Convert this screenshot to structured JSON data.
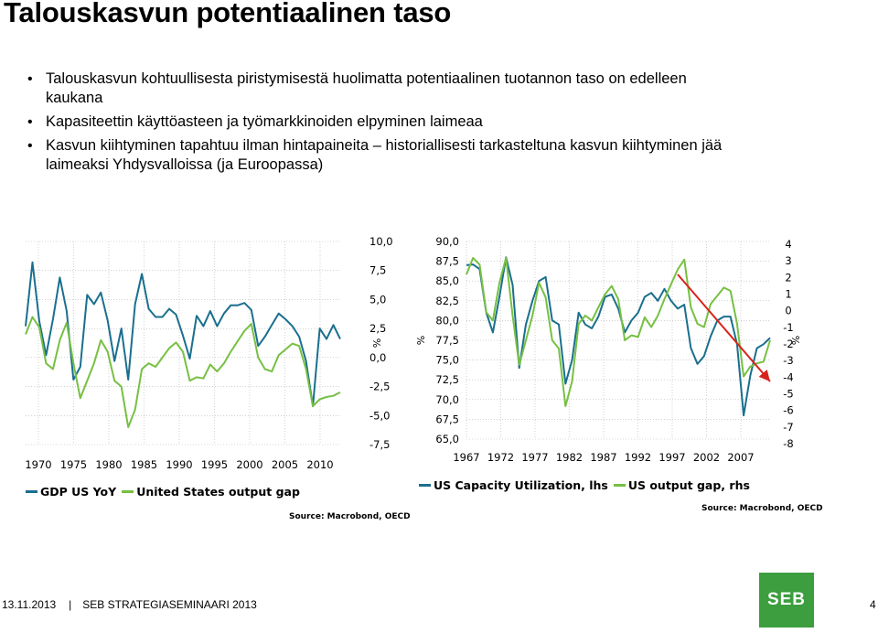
{
  "title": "Talouskasvun potentiaalinen taso",
  "bullets": [
    "Talouskasvun kohtuullisesta piristymisestä huolimatta potentiaalinen tuotannon taso on edelleen kaukana",
    "Kapasiteettin käyttöasteen ja työmarkkinoiden elpyminen laimeaa",
    "Kasvun kiihtyminen tapahtuu ilman hintapaineita – historiallisesti tarkasteltuna kasvun kiihtyminen jää laimeaksi Yhdysvalloissa (ja Euroopassa)"
  ],
  "colors": {
    "blue": "#1a6f8e",
    "green": "#77c043",
    "arrow": "#d7231e",
    "logo": "#3c9e3f"
  },
  "chart_data": [
    {
      "type": "line",
      "x_tick_labels": [
        "1970",
        "1975",
        "1980",
        "1985",
        "1990",
        "1995",
        "2000",
        "2005",
        "2010"
      ],
      "y_tick_labels": [
        "10,0",
        "7,5",
        "5,0",
        "2,5",
        "0,0",
        "-2,5",
        "-5,0",
        "-7,5"
      ],
      "ylabel": "%",
      "ylim": [
        -7.5,
        10
      ],
      "xlim": [
        1967,
        2013
      ],
      "grid": true,
      "legend_position": "bottom",
      "series": [
        {
          "name": "GDP US YoY",
          "color": "#1a6f8e",
          "x": [
            1967,
            1968,
            1969,
            1970,
            1971,
            1972,
            1973,
            1974,
            1975,
            1976,
            1977,
            1978,
            1979,
            1980,
            1981,
            1982,
            1983,
            1984,
            1985,
            1986,
            1987,
            1988,
            1989,
            1990,
            1991,
            1992,
            1993,
            1994,
            1995,
            1996,
            1997,
            1998,
            1999,
            2000,
            2001,
            2002,
            2003,
            2004,
            2005,
            2006,
            2007,
            2008,
            2009,
            2010,
            2011,
            2012,
            2013
          ],
          "y": [
            2.7,
            8.2,
            3.1,
            0.2,
            3.3,
            6.9,
            4.0,
            -1.9,
            -0.8,
            5.4,
            4.6,
            5.6,
            3.2,
            -0.3,
            2.5,
            -1.9,
            4.6,
            7.2,
            4.2,
            3.5,
            3.5,
            4.2,
            3.7,
            1.9,
            -0.1,
            3.6,
            2.7,
            4.0,
            2.7,
            3.8,
            4.5,
            4.5,
            4.7,
            4.1,
            1.0,
            1.8,
            2.8,
            3.8,
            3.3,
            2.7,
            1.8,
            -0.3,
            -4.2,
            2.5,
            1.6,
            2.8,
            1.6
          ]
        },
        {
          "name": "United States output gap",
          "color": "#77c043",
          "x": [
            1967,
            1968,
            1969,
            1970,
            1971,
            1972,
            1973,
            1974,
            1975,
            1976,
            1977,
            1978,
            1979,
            1980,
            1981,
            1982,
            1983,
            1984,
            1985,
            1986,
            1987,
            1988,
            1989,
            1990,
            1991,
            1992,
            1993,
            1994,
            1995,
            1996,
            1997,
            1998,
            1999,
            2000,
            2001,
            2002,
            2003,
            2004,
            2005,
            2006,
            2007,
            2008,
            2009,
            2010,
            2011,
            2012,
            2013
          ],
          "y": [
            2.0,
            3.5,
            2.6,
            -0.5,
            -1.0,
            1.5,
            3.0,
            -0.5,
            -3.5,
            -2.0,
            -0.5,
            1.5,
            0.5,
            -2.0,
            -2.5,
            -6.0,
            -4.5,
            -1.0,
            -0.5,
            -0.8,
            0.0,
            0.8,
            1.3,
            0.5,
            -2.0,
            -1.7,
            -1.8,
            -0.6,
            -1.2,
            -0.5,
            0.5,
            1.4,
            2.3,
            2.9,
            0.0,
            -1.0,
            -1.2,
            0.2,
            0.7,
            1.2,
            1.0,
            -1.0,
            -4.2,
            -3.6,
            -3.4,
            -3.3,
            -3.0
          ]
        }
      ]
    },
    {
      "type": "line",
      "x_tick_labels": [
        "1967",
        "1972",
        "1977",
        "1982",
        "1987",
        "1992",
        "1997",
        "2002",
        "2007"
      ],
      "y_tick_labels_left": [
        "90,0",
        "87,5",
        "85,0",
        "82,5",
        "80,0",
        "77,5",
        "75,0",
        "72,5",
        "70,0",
        "67,5",
        "65,0"
      ],
      "y_tick_labels_right": [
        "4",
        "3",
        "2",
        "1",
        "0",
        "-1",
        "-2",
        "-3",
        "-4",
        "-5",
        "-6",
        "-7",
        "-8"
      ],
      "ylabel_left": "%",
      "ylabel_right": "%",
      "ylim_left": [
        65,
        90
      ],
      "ylim_right": [
        -8,
        4
      ],
      "xlim": [
        1967,
        2013
      ],
      "grid": true,
      "legend_position": "bottom",
      "series": [
        {
          "name": "US Capacity Utilization, lhs",
          "color": "#1a6f8e",
          "axis": "left",
          "x": [
            1967,
            1968,
            1969,
            1970,
            1971,
            1972,
            1973,
            1974,
            1975,
            1976,
            1977,
            1978,
            1979,
            1980,
            1981,
            1982,
            1983,
            1984,
            1985,
            1986,
            1987,
            1988,
            1989,
            1990,
            1991,
            1992,
            1993,
            1994,
            1995,
            1996,
            1997,
            1998,
            1999,
            2000,
            2001,
            2002,
            2003,
            2004,
            2005,
            2006,
            2007,
            2008,
            2009,
            2010,
            2011,
            2012,
            2013
          ],
          "y": [
            87.0,
            87.1,
            86.5,
            81.0,
            78.5,
            83.0,
            88.0,
            84.5,
            74.0,
            79.5,
            82.5,
            85.0,
            85.5,
            80.0,
            79.5,
            72.0,
            75.0,
            81.0,
            79.5,
            79.0,
            80.5,
            83.0,
            83.3,
            81.5,
            78.5,
            80.0,
            81.0,
            83.0,
            83.5,
            82.5,
            84.0,
            82.5,
            81.5,
            82.0,
            76.5,
            74.5,
            75.5,
            78.0,
            80.0,
            80.5,
            80.5,
            77.0,
            68.0,
            73.0,
            76.5,
            77.0,
            77.8
          ]
        },
        {
          "name": "US output gap, rhs",
          "color": "#77c043",
          "axis": "right",
          "x": [
            1967,
            1968,
            1969,
            1970,
            1971,
            1972,
            1973,
            1974,
            1975,
            1976,
            1977,
            1978,
            1979,
            1980,
            1981,
            1982,
            1983,
            1984,
            1985,
            1986,
            1987,
            1988,
            1989,
            1990,
            1991,
            1992,
            1993,
            1994,
            1995,
            1996,
            1997,
            1998,
            1999,
            2000,
            2001,
            2002,
            2003,
            2004,
            2005,
            2006,
            2007,
            2008,
            2009,
            2010,
            2011,
            2012,
            2013
          ],
          "y": [
            2.0,
            3.0,
            2.6,
            -0.3,
            -0.8,
            1.5,
            3.0,
            -0.5,
            -3.5,
            -2.0,
            -0.5,
            1.5,
            0.6,
            -2.0,
            -2.5,
            -6.0,
            -4.5,
            -1.0,
            -0.5,
            -0.8,
            0.0,
            0.8,
            1.3,
            0.5,
            -2.0,
            -1.7,
            -1.8,
            -0.6,
            -1.2,
            -0.5,
            0.5,
            1.4,
            2.3,
            2.9,
            0.0,
            -1.0,
            -1.2,
            0.2,
            0.7,
            1.2,
            1.0,
            -1.0,
            -4.2,
            -3.6,
            -3.4,
            -3.3,
            -2.0
          ]
        }
      ],
      "annotation": {
        "type": "arrow",
        "color": "#d7231e",
        "from": [
          1999,
          2.0
        ],
        "to": [
          2013,
          -4.5
        ]
      }
    }
  ],
  "sources": [
    "Source: Macrobond, OECD",
    "Source: Macrobond, OECD"
  ],
  "footer": {
    "date": "13.11.2013",
    "event": "SEB STRATEGIASEMINAARI 2013",
    "page": "4"
  },
  "logo_text": "SEB"
}
